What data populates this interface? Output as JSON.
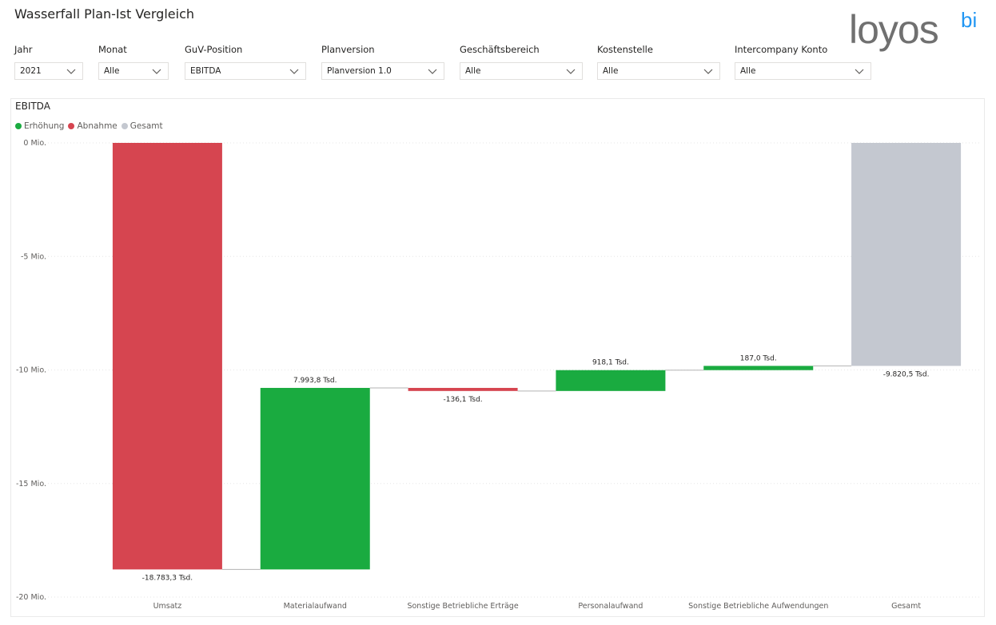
{
  "page": {
    "title": "Wasserfall Plan-Ist Vergleich"
  },
  "logo": {
    "text_main": "loyos",
    "text_super": "bi"
  },
  "filters": [
    {
      "label": "Jahr",
      "value": "2021"
    },
    {
      "label": "Monat",
      "value": "Alle"
    },
    {
      "label": "GuV-Position",
      "value": "EBITDA"
    },
    {
      "label": "Planversion",
      "value": "Planversion 1.0"
    },
    {
      "label": "Geschäftsbereich",
      "value": "Alle"
    },
    {
      "label": "Kostenstelle",
      "value": "Alle"
    },
    {
      "label": "Intercompany Konto",
      "value": "Alle"
    }
  ],
  "chart_data": {
    "type": "waterfall",
    "title": "EBITDA",
    "legend": [
      {
        "name": "Erhöhung",
        "color": "#1aab40"
      },
      {
        "name": "Abnahme",
        "color": "#d64550"
      },
      {
        "name": "Gesamt",
        "color": "#c4c8d0"
      }
    ],
    "legend_position": "top-left",
    "categories": [
      "Umsatz",
      "Materialaufwand",
      "Sonstige Betriebliche Erträge",
      "Personalaufwand",
      "Sonstige Betriebliche Aufwendungen",
      "Gesamt"
    ],
    "values": [
      -18783.3,
      7993.8,
      -136.1,
      918.1,
      187.0,
      -9820.5
    ],
    "kinds": [
      "decrease",
      "increase",
      "decrease",
      "increase",
      "increase",
      "total"
    ],
    "data_labels": [
      "-18.783,3 Tsd.",
      "7.993,8 Tsd.",
      "-136,1 Tsd.",
      "918,1 Tsd.",
      "187,0 Tsd.",
      "-9.820,5 Tsd."
    ],
    "unit": "Tsd.",
    "y_ticks": [
      0,
      -5000,
      -10000,
      -15000,
      -20000
    ],
    "y_tick_labels": [
      "0 Mio.",
      "-5 Mio.",
      "-10 Mio.",
      "-15 Mio.",
      "-20 Mio."
    ],
    "ylim": [
      -20000,
      0
    ],
    "grid": true
  }
}
